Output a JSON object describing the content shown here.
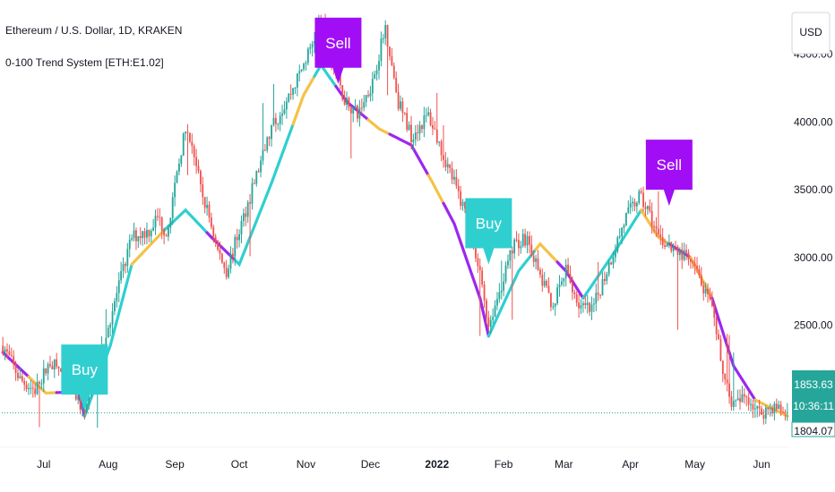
{
  "header": {
    "title": "Ethereum / U.S. Dollar, 1D, KRAKEN",
    "indicator": "0-100 Trend System [ETH:E1.02]"
  },
  "currency_button": "USD",
  "price_label": {
    "value": "1853.63",
    "countdown": "10:36:11",
    "cut_value": "1804.07"
  },
  "colors": {
    "up": "#26a69a",
    "down": "#ef5350",
    "trend_up": "#2fcfd0",
    "trend_neutral": "#f5c246",
    "trend_down": "#9c27f0",
    "buy_bg": "#2fcfd0",
    "sell_bg": "#a10ef5",
    "price_bg": "#26a69a"
  },
  "chart_data": {
    "type": "candlestick",
    "title": "Ethereum / U.S. Dollar, 1D, KRAKEN",
    "ylim": [
      1600,
      4900
    ],
    "y_ticks": [
      2500,
      3000,
      3500,
      4000,
      4500
    ],
    "y_tick_labels": [
      "2500.00",
      "3000.00",
      "3500.00",
      "4000.00",
      "4500.00"
    ],
    "x_tick_labels": [
      "Jul",
      "Aug",
      "Sep",
      "Oct",
      "Nov",
      "Dec",
      "2022",
      "Feb",
      "Mar",
      "Apr",
      "May",
      "Jun"
    ],
    "x_tick_index": [
      19,
      49,
      80,
      110,
      141,
      171,
      202,
      233,
      261,
      292,
      322,
      353
    ],
    "bold_ticks": [
      "2022"
    ],
    "last_price": 1853.63,
    "series": [
      {
        "name": "0-100 Trend System [ETH:E1.02]",
        "points": [
          [
            0,
            2300
          ],
          [
            20,
            2000
          ],
          [
            35,
            2010
          ],
          [
            38,
            1830
          ],
          [
            50,
            2350
          ],
          [
            60,
            2950
          ],
          [
            75,
            3200
          ],
          [
            85,
            3350
          ],
          [
            97,
            3150
          ],
          [
            110,
            2950
          ],
          [
            125,
            3550
          ],
          [
            140,
            4200
          ],
          [
            148,
            4420
          ],
          [
            160,
            4150
          ],
          [
            175,
            3950
          ],
          [
            190,
            3830
          ],
          [
            200,
            3550
          ],
          [
            210,
            3250
          ],
          [
            222,
            2700
          ],
          [
            226,
            2420
          ],
          [
            240,
            2900
          ],
          [
            250,
            3100
          ],
          [
            262,
            2900
          ],
          [
            270,
            2700
          ],
          [
            285,
            3050
          ],
          [
            297,
            3350
          ],
          [
            305,
            3150
          ],
          [
            320,
            3000
          ],
          [
            330,
            2700
          ],
          [
            340,
            2200
          ],
          [
            350,
            1950
          ],
          [
            365,
            1830
          ]
        ],
        "segments": [
          {
            "from": 0,
            "to": 12,
            "trend": "down"
          },
          {
            "from": 12,
            "to": 25,
            "trend": "neutral"
          },
          {
            "from": 25,
            "to": 38,
            "trend": "down"
          },
          {
            "from": 38,
            "to": 60,
            "trend": "up"
          },
          {
            "from": 60,
            "to": 75,
            "trend": "neutral"
          },
          {
            "from": 75,
            "to": 95,
            "trend": "up"
          },
          {
            "from": 95,
            "to": 108,
            "trend": "down"
          },
          {
            "from": 108,
            "to": 135,
            "trend": "up"
          },
          {
            "from": 135,
            "to": 145,
            "trend": "neutral"
          },
          {
            "from": 145,
            "to": 155,
            "trend": "up"
          },
          {
            "from": 155,
            "to": 170,
            "trend": "down"
          },
          {
            "from": 170,
            "to": 180,
            "trend": "neutral"
          },
          {
            "from": 180,
            "to": 198,
            "trend": "down"
          },
          {
            "from": 198,
            "to": 205,
            "trend": "neutral"
          },
          {
            "from": 205,
            "to": 226,
            "trend": "down"
          },
          {
            "from": 226,
            "to": 248,
            "trend": "up"
          },
          {
            "from": 248,
            "to": 258,
            "trend": "neutral"
          },
          {
            "from": 258,
            "to": 270,
            "trend": "down"
          },
          {
            "from": 270,
            "to": 297,
            "trend": "up"
          },
          {
            "from": 297,
            "to": 310,
            "trend": "neutral"
          },
          {
            "from": 310,
            "to": 320,
            "trend": "down"
          },
          {
            "from": 320,
            "to": 330,
            "trend": "neutral"
          },
          {
            "from": 330,
            "to": 350,
            "trend": "down"
          },
          {
            "from": 350,
            "to": 365,
            "trend": "neutral"
          }
        ]
      }
    ],
    "price_anchors": [
      [
        0,
        2350
      ],
      [
        8,
        2100
      ],
      [
        15,
        2020
      ],
      [
        22,
        2230
      ],
      [
        30,
        2120
      ],
      [
        38,
        1850
      ],
      [
        44,
        2200
      ],
      [
        50,
        2550
      ],
      [
        60,
        3150
      ],
      [
        68,
        3200
      ],
      [
        72,
        3300
      ],
      [
        76,
        3180
      ],
      [
        80,
        3500
      ],
      [
        84,
        3900
      ],
      [
        88,
        3850
      ],
      [
        92,
        3500
      ],
      [
        96,
        3300
      ],
      [
        100,
        3050
      ],
      [
        104,
        2900
      ],
      [
        110,
        3200
      ],
      [
        115,
        3450
      ],
      [
        125,
        3950
      ],
      [
        135,
        4250
      ],
      [
        142,
        4500
      ],
      [
        148,
        4750
      ],
      [
        152,
        4500
      ],
      [
        158,
        4200
      ],
      [
        165,
        4050
      ],
      [
        172,
        4300
      ],
      [
        178,
        4700
      ],
      [
        184,
        4150
      ],
      [
        190,
        3900
      ],
      [
        198,
        4050
      ],
      [
        204,
        3800
      ],
      [
        210,
        3550
      ],
      [
        216,
        3300
      ],
      [
        222,
        2900
      ],
      [
        226,
        2500
      ],
      [
        232,
        2800
      ],
      [
        238,
        3100
      ],
      [
        244,
        3150
      ],
      [
        250,
        2850
      ],
      [
        256,
        2650
      ],
      [
        262,
        2900
      ],
      [
        268,
        2650
      ],
      [
        274,
        2600
      ],
      [
        282,
        2950
      ],
      [
        290,
        3300
      ],
      [
        296,
        3450
      ],
      [
        300,
        3350
      ],
      [
        305,
        3150
      ],
      [
        312,
        3050
      ],
      [
        318,
        3000
      ],
      [
        324,
        2850
      ],
      [
        330,
        2600
      ],
      [
        336,
        2100
      ],
      [
        340,
        1900
      ],
      [
        346,
        1980
      ],
      [
        352,
        1850
      ],
      [
        358,
        1900
      ],
      [
        365,
        1853.63
      ]
    ],
    "signals": [
      {
        "type": "Buy",
        "index": 38,
        "price": 1870,
        "label": "Buy"
      },
      {
        "type": "Sell",
        "index": 156,
        "price": 4400,
        "label": "Sell"
      },
      {
        "type": "Buy",
        "index": 226,
        "price": 2950,
        "label": "Buy"
      },
      {
        "type": "Sell",
        "index": 310,
        "price": 3500,
        "label": "Sell"
      }
    ]
  }
}
